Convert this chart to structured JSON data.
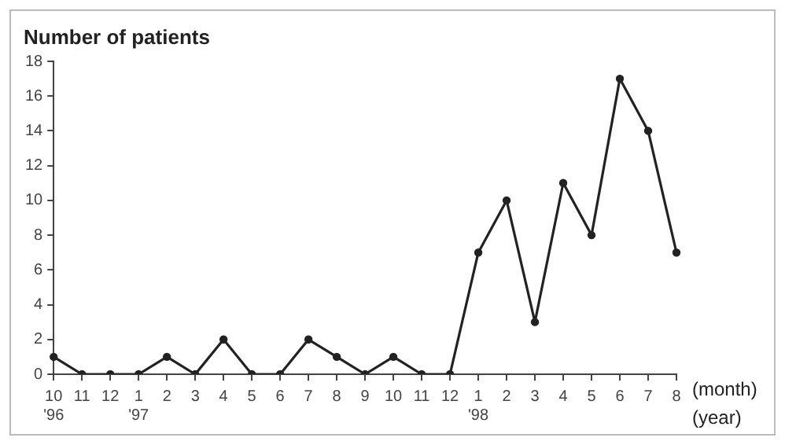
{
  "chart_data": {
    "type": "line",
    "title": "Number of patients",
    "xlabel": "(month)",
    "annotations": [
      "(year)"
    ],
    "categories": [
      "10\n'96",
      "11",
      "12",
      "1\n'97",
      "2",
      "3",
      "4",
      "5",
      "6",
      "7",
      "8",
      "9",
      "10",
      "11",
      "12",
      "1\n'98",
      "2",
      "3",
      "4",
      "5",
      "6",
      "7",
      "8"
    ],
    "series": [
      {
        "color": "#222222",
        "values": [
          1,
          0,
          0,
          0,
          1,
          0,
          2,
          0,
          0,
          2,
          1,
          0,
          1,
          0,
          0,
          7,
          10,
          3,
          11,
          8,
          17,
          14,
          7
        ]
      }
    ],
    "ylim": [
      0,
      18
    ],
    "yticks": [
      0,
      2,
      4,
      6,
      8,
      10,
      12,
      14,
      16,
      18
    ],
    "grid": false,
    "legend": false,
    "marker": "circle",
    "line_style": "solid"
  }
}
